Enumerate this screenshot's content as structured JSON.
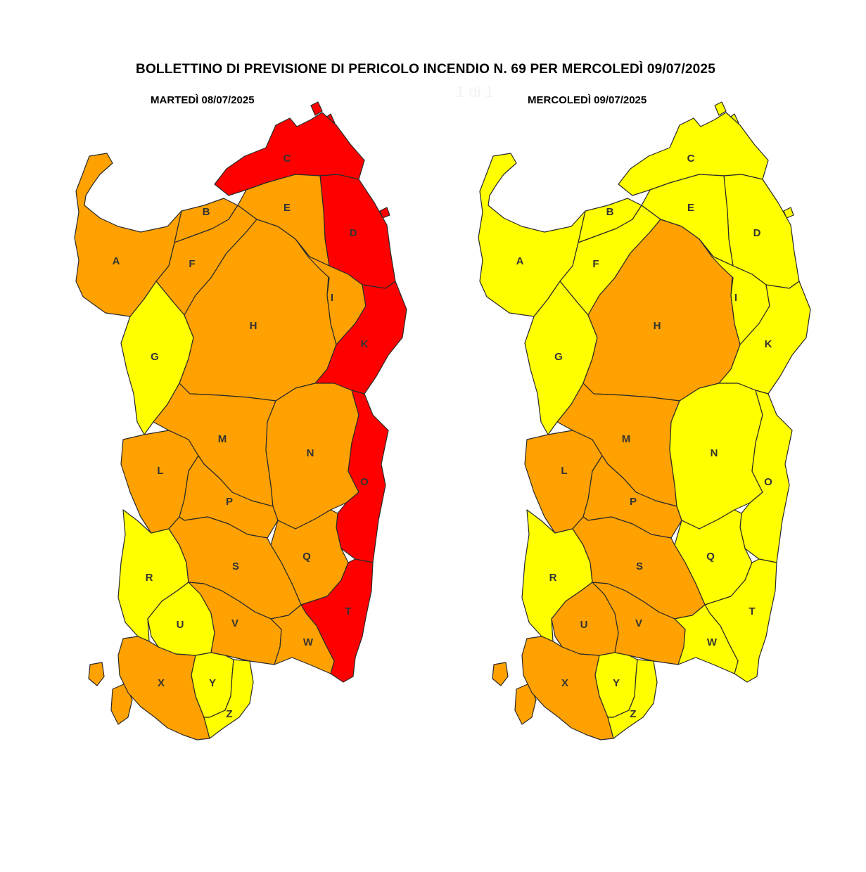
{
  "title": "BOLLETTINO DI PREVISIONE DI PERICOLO INCENDIO N. 69 PER MERCOLEDÌ 09/07/2025",
  "ghost_text": "1 di 1",
  "colors": {
    "yellow": "#ffff00",
    "orange": "#ffa100",
    "red": "#ff0000"
  },
  "maps": [
    {
      "heading": "MARTEDÌ 08/07/2025",
      "zones": {
        "A": "orange",
        "B": "orange",
        "C": "red",
        "D": "red",
        "E": "orange",
        "F": "orange",
        "G": "yellow",
        "H": "orange",
        "I": "orange",
        "K": "red",
        "L": "orange",
        "M": "orange",
        "N": "orange",
        "O": "red",
        "P": "orange",
        "Q": "orange",
        "R": "yellow",
        "S": "orange",
        "T": "red",
        "U": "yellow",
        "V": "orange",
        "W": "orange",
        "X": "orange",
        "Y": "yellow",
        "Z": "yellow"
      }
    },
    {
      "heading": "MERCOLEDÌ 09/07/2025",
      "zones": {
        "A": "yellow",
        "B": "yellow",
        "C": "yellow",
        "D": "yellow",
        "E": "yellow",
        "F": "yellow",
        "G": "yellow",
        "H": "orange",
        "I": "yellow",
        "K": "yellow",
        "L": "orange",
        "M": "orange",
        "N": "yellow",
        "O": "yellow",
        "P": "orange",
        "Q": "yellow",
        "R": "yellow",
        "S": "orange",
        "T": "yellow",
        "U": "orange",
        "V": "orange",
        "W": "yellow",
        "X": "orange",
        "Y": "yellow",
        "Z": "yellow"
      }
    }
  ]
}
